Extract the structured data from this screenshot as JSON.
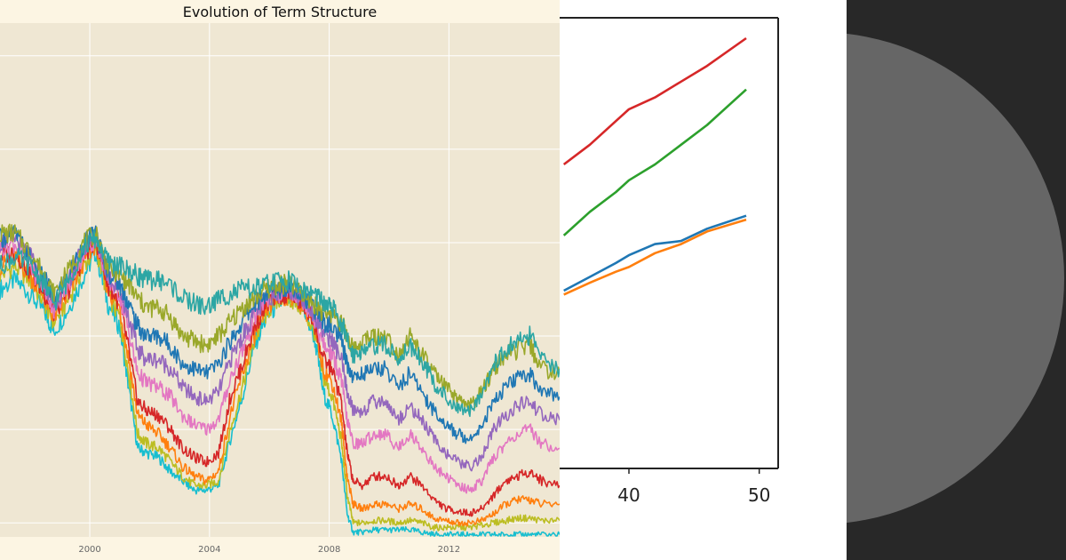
{
  "chart_data": [
    {
      "type": "line",
      "title": "Evolution of Term Structure",
      "xlabel": "",
      "ylabel": "",
      "x_ticks": [
        "2000",
        "2004",
        "2008",
        "2012"
      ],
      "xlim": [
        1997.0,
        2015.7
      ],
      "ylim": [
        0,
        11
      ],
      "grid": true,
      "background": "#efe7d3",
      "x": [
        1997.0,
        1997.5,
        1998.0,
        1998.5,
        1998.8,
        1999.3,
        1999.8,
        2000.2,
        2000.6,
        2001.0,
        2001.3,
        2001.6,
        2001.9,
        2002.3,
        2002.7,
        2003.1,
        2003.5,
        2003.9,
        2004.3,
        2004.7,
        2005.1,
        2005.5,
        2005.9,
        2006.3,
        2006.7,
        2007.1,
        2007.5,
        2007.8,
        2008.1,
        2008.4,
        2008.6,
        2008.8,
        2009.1,
        2009.5,
        2009.9,
        2010.3,
        2010.7,
        2011.1,
        2011.5,
        2011.9,
        2012.3,
        2012.7,
        2013.1,
        2013.5,
        2013.9,
        2014.3,
        2014.7,
        2015.1,
        2015.7
      ],
      "series": [
        {
          "color": "#17becf",
          "values": [
            5.3,
            5.5,
            5.2,
            4.8,
            4.4,
            4.9,
            5.6,
            6.1,
            5.0,
            4.5,
            3.2,
            1.9,
            1.8,
            1.7,
            1.4,
            1.2,
            1.0,
            1.0,
            1.1,
            2.1,
            3.0,
            4.1,
            4.7,
            5.0,
            5.1,
            4.9,
            4.3,
            3.1,
            2.6,
            1.7,
            0.5,
            0.1,
            0.1,
            0.15,
            0.15,
            0.15,
            0.15,
            0.1,
            0.05,
            0.05,
            0.05,
            0.05,
            0.05,
            0.05,
            0.05,
            0.05,
            0.05,
            0.05,
            0.05
          ]
        },
        {
          "color": "#bcbd22",
          "values": [
            5.6,
            5.8,
            5.5,
            5.0,
            4.6,
            5.1,
            5.8,
            6.2,
            5.2,
            4.7,
            3.5,
            2.2,
            2.0,
            1.9,
            1.6,
            1.3,
            1.1,
            1.1,
            1.2,
            2.3,
            3.2,
            4.2,
            4.8,
            5.1,
            5.1,
            4.9,
            4.4,
            3.4,
            3.0,
            2.1,
            0.9,
            0.3,
            0.3,
            0.35,
            0.35,
            0.3,
            0.35,
            0.3,
            0.2,
            0.2,
            0.2,
            0.2,
            0.25,
            0.3,
            0.35,
            0.4,
            0.4,
            0.35,
            0.35
          ]
        },
        {
          "color": "#ff7f0e",
          "values": [
            5.8,
            6.0,
            5.6,
            5.1,
            4.7,
            5.2,
            5.9,
            6.3,
            5.3,
            4.9,
            3.8,
            2.6,
            2.4,
            2.2,
            1.9,
            1.5,
            1.3,
            1.2,
            1.4,
            2.6,
            3.5,
            4.3,
            4.9,
            5.1,
            5.2,
            5.0,
            4.5,
            3.6,
            3.3,
            2.5,
            1.3,
            0.7,
            0.6,
            0.7,
            0.7,
            0.6,
            0.7,
            0.6,
            0.4,
            0.35,
            0.3,
            0.3,
            0.35,
            0.5,
            0.7,
            0.8,
            0.8,
            0.7,
            0.7
          ]
        },
        {
          "color": "#d62728",
          "values": [
            6.0,
            6.1,
            5.7,
            5.2,
            4.8,
            5.3,
            6.0,
            6.4,
            5.4,
            5.0,
            4.0,
            2.9,
            2.7,
            2.6,
            2.3,
            1.9,
            1.7,
            1.6,
            1.8,
            3.0,
            3.7,
            4.5,
            5.0,
            5.2,
            5.2,
            5.0,
            4.6,
            3.8,
            3.6,
            2.9,
            1.8,
            1.2,
            1.1,
            1.3,
            1.3,
            1.1,
            1.3,
            1.1,
            0.8,
            0.6,
            0.55,
            0.5,
            0.6,
            0.9,
            1.2,
            1.3,
            1.4,
            1.2,
            1.1
          ]
        },
        {
          "color": "#e377c2",
          "values": [
            6.2,
            6.3,
            5.8,
            5.3,
            4.9,
            5.4,
            6.1,
            6.4,
            5.5,
            5.2,
            4.4,
            3.5,
            3.3,
            3.2,
            3.0,
            2.6,
            2.4,
            2.3,
            2.5,
            3.4,
            4.0,
            4.7,
            5.1,
            5.2,
            5.3,
            5.1,
            4.7,
            4.1,
            3.9,
            3.4,
            2.5,
            2.0,
            2.0,
            2.2,
            2.2,
            1.9,
            2.2,
            1.9,
            1.5,
            1.3,
            1.1,
            1.0,
            1.2,
            1.7,
            2.0,
            2.2,
            2.3,
            2.0,
            1.9
          ]
        },
        {
          "color": "#9467bd",
          "values": [
            6.3,
            6.4,
            6.0,
            5.4,
            5.0,
            5.5,
            6.2,
            6.5,
            5.6,
            5.3,
            4.7,
            4.0,
            3.8,
            3.8,
            3.6,
            3.2,
            3.0,
            2.9,
            3.1,
            3.8,
            4.3,
            4.8,
            5.1,
            5.3,
            5.3,
            5.1,
            4.8,
            4.4,
            4.2,
            3.8,
            3.1,
            2.7,
            2.7,
            2.9,
            2.9,
            2.5,
            2.8,
            2.5,
            2.1,
            1.8,
            1.6,
            1.5,
            1.7,
            2.3,
            2.6,
            2.8,
            2.9,
            2.6,
            2.5
          ]
        },
        {
          "color": "#1f77b4",
          "values": [
            6.4,
            6.5,
            6.0,
            5.5,
            5.1,
            5.6,
            6.3,
            6.5,
            5.7,
            5.4,
            5.0,
            4.5,
            4.3,
            4.3,
            4.1,
            3.7,
            3.6,
            3.5,
            3.7,
            4.2,
            4.6,
            5.0,
            5.2,
            5.3,
            5.4,
            5.2,
            4.9,
            4.6,
            4.5,
            4.2,
            3.7,
            3.4,
            3.5,
            3.6,
            3.6,
            3.2,
            3.5,
            3.1,
            2.7,
            2.4,
            2.2,
            2.1,
            2.4,
            2.9,
            3.2,
            3.4,
            3.5,
            3.1,
            3.0
          ]
        },
        {
          "color": "#9aa82a",
          "values": [
            6.5,
            6.5,
            6.1,
            5.6,
            5.2,
            5.7,
            6.3,
            6.5,
            5.8,
            5.6,
            5.4,
            5.1,
            4.9,
            4.9,
            4.7,
            4.3,
            4.2,
            4.1,
            4.3,
            4.6,
            4.9,
            5.1,
            5.3,
            5.4,
            5.4,
            5.2,
            5.0,
            4.8,
            4.8,
            4.6,
            4.3,
            4.0,
            4.2,
            4.3,
            4.3,
            3.9,
            4.3,
            3.9,
            3.5,
            3.2,
            2.9,
            2.8,
            3.1,
            3.6,
            3.9,
            4.0,
            4.1,
            3.6,
            3.5
          ]
        },
        {
          "color": "#2ca6a4",
          "values": [
            5.8,
            6.0,
            5.8,
            5.4,
            5.0,
            5.5,
            6.2,
            6.4,
            5.9,
            5.8,
            5.7,
            5.6,
            5.5,
            5.5,
            5.4,
            5.1,
            5.0,
            4.9,
            5.1,
            5.2,
            5.3,
            5.3,
            5.4,
            5.5,
            5.5,
            5.3,
            5.2,
            5.0,
            4.9,
            4.6,
            4.2,
            3.9,
            4.0,
            4.1,
            4.1,
            3.8,
            4.1,
            3.8,
            3.3,
            3.0,
            2.7,
            2.7,
            3.1,
            3.7,
            4.0,
            4.2,
            4.3,
            3.8,
            3.6
          ]
        }
      ]
    },
    {
      "type": "line",
      "title": "",
      "x_ticks": [
        "40",
        "50"
      ],
      "xlim": [
        34.8,
        51.5
      ],
      "ylim": [
        0,
        100
      ],
      "grid": false,
      "x": [
        35,
        37,
        39,
        40,
        42,
        44,
        46,
        49
      ],
      "series": [
        {
          "color": "#d62728",
          "values": [
            74,
            79,
            85,
            88,
            91,
            95,
            99,
            106
          ]
        },
        {
          "color": "#2ca02c",
          "values": [
            56,
            62,
            67,
            70,
            74,
            79,
            84,
            93
          ]
        },
        {
          "color": "#1f77b4",
          "values": [
            42,
            45.5,
            49,
            51,
            53.8,
            54.6,
            57.7,
            61
          ]
        },
        {
          "color": "#ff7f0e",
          "values": [
            41,
            44,
            46.8,
            48,
            51.5,
            53.8,
            57,
            60
          ]
        }
      ]
    }
  ],
  "decor": {
    "right_panel_background": "#282828",
    "circle_color": "#666666"
  }
}
